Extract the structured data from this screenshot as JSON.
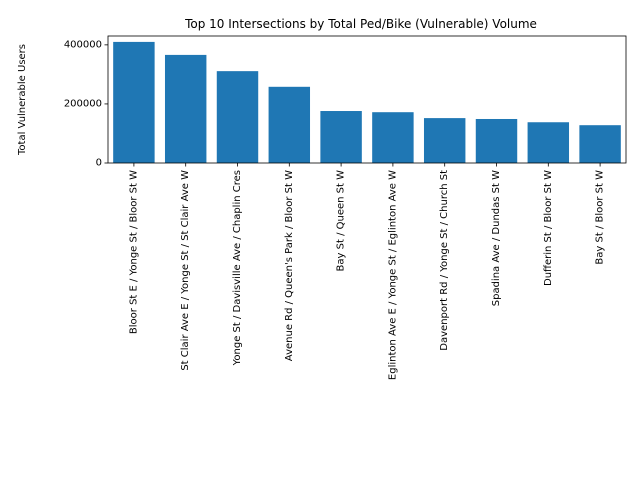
{
  "chart_data": {
    "type": "bar",
    "title": "Top 10 Intersections by Total Ped/Bike (Vulnerable) Volume",
    "xlabel": "",
    "ylabel": "Total Vulnerable Users",
    "ylim": [
      0,
      430000
    ],
    "yticks": [
      0,
      200000,
      400000
    ],
    "ytick_labels": [
      "0",
      "200000",
      "400000"
    ],
    "grid": false,
    "bar_color": "#1f77b4",
    "categories": [
      "Bloor St E / Yonge St / Bloor St W",
      "St Clair Ave E / Yonge St / St Clair Ave W",
      "Yonge St / Davisville Ave / Chaplin Cres",
      "Avenue Rd / Queen's Park / Bloor St W",
      "Bay St / Queen St W",
      "Eglinton Ave E / Yonge St / Eglinton Ave W",
      "Davenport Rd / Yonge St / Church St",
      "Spadina Ave / Dundas St W",
      "Dufferin St / Bloor St W",
      "Bay St / Bloor St W"
    ],
    "values": [
      410000,
      366000,
      311000,
      258000,
      176000,
      172000,
      152000,
      149000,
      138000,
      128000
    ]
  }
}
